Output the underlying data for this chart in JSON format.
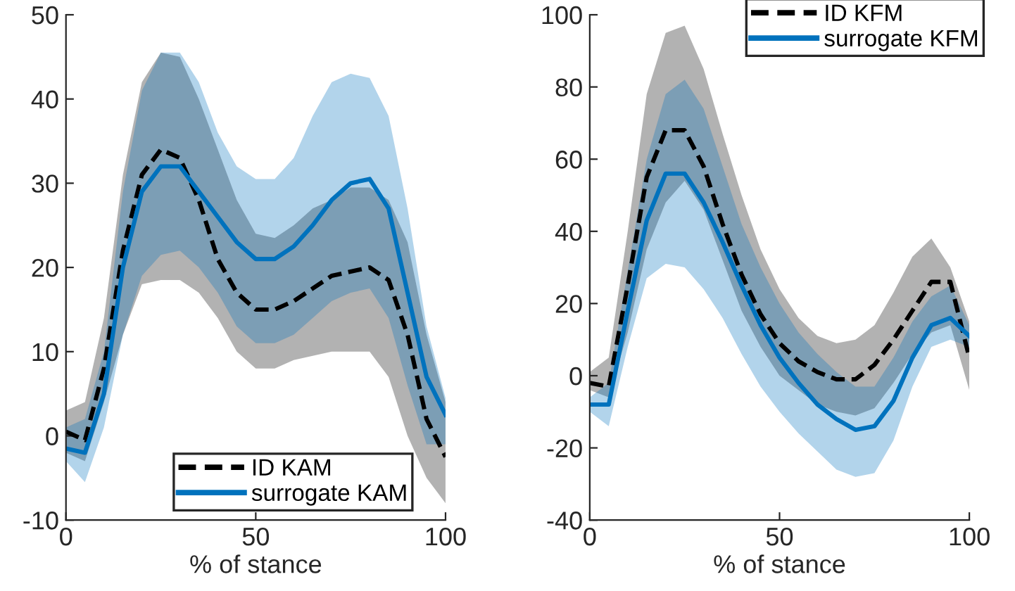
{
  "chart_data": [
    {
      "type": "line",
      "xlabel": "% of stance",
      "xlim": [
        0,
        100
      ],
      "xticks": [
        0,
        50,
        100
      ],
      "ylim": [
        -10,
        50
      ],
      "yticks": [
        -10,
        0,
        10,
        20,
        30,
        40,
        50
      ],
      "legend": "bottom right",
      "x": [
        0,
        5,
        10,
        15,
        20,
        25,
        30,
        35,
        40,
        45,
        50,
        55,
        60,
        65,
        70,
        75,
        80,
        85,
        90,
        95,
        100
      ],
      "series": [
        {
          "name": "ID KAM",
          "color": "#000000",
          "line_style": "dashed",
          "values": [
            0.5,
            -0.5,
            8,
            22,
            31,
            34,
            33,
            28,
            21,
            17,
            15,
            15,
            16,
            17.5,
            19,
            19.5,
            20,
            18.5,
            12,
            2,
            -2.5
          ],
          "lower": [
            -2,
            -3,
            4,
            12,
            18,
            18.5,
            18.5,
            17,
            14,
            10,
            8,
            8,
            9,
            9.5,
            10,
            10,
            10,
            7,
            0,
            -5,
            -8
          ],
          "upper": [
            3,
            4,
            14,
            31,
            42,
            45.5,
            45,
            40,
            34,
            28,
            24,
            23.5,
            25,
            27,
            28,
            29.5,
            29.5,
            28,
            23,
            12,
            4
          ]
        },
        {
          "name": "surrogate KAM",
          "color": "#0072bd",
          "line_style": "solid",
          "values": [
            -1.5,
            -2,
            5,
            20,
            29,
            32,
            32,
            29,
            26,
            23,
            21,
            21,
            22.5,
            25,
            28,
            30,
            30.5,
            27,
            17,
            7,
            2.5
          ],
          "lower": [
            -3,
            -5.5,
            1,
            12,
            19,
            21.5,
            22,
            20,
            17,
            13,
            11,
            11,
            12,
            14,
            16,
            17,
            17.5,
            14,
            6,
            -1,
            -1
          ],
          "upper": [
            1,
            2,
            10,
            29,
            41,
            45.5,
            45.5,
            42,
            36,
            32,
            30.5,
            30.5,
            33,
            38,
            42,
            43,
            42.5,
            38,
            27,
            13,
            4.5
          ]
        }
      ]
    },
    {
      "type": "line",
      "xlabel": "% of stance",
      "xlim": [
        0,
        100
      ],
      "xticks": [
        0,
        50,
        100
      ],
      "ylim": [
        -40,
        100
      ],
      "yticks": [
        -40,
        -20,
        0,
        20,
        40,
        60,
        80,
        100
      ],
      "legend": "top right",
      "x": [
        0,
        5,
        10,
        15,
        20,
        25,
        30,
        35,
        40,
        45,
        50,
        55,
        60,
        65,
        70,
        75,
        80,
        85,
        90,
        95,
        100
      ],
      "series": [
        {
          "name": "ID KFM",
          "color": "#000000",
          "line_style": "dashed",
          "values": [
            -2,
            -3,
            25,
            55,
            68,
            68,
            58,
            42,
            28,
            17,
            9,
            4,
            1,
            -1,
            -1,
            3,
            10,
            18,
            26,
            26,
            5
          ],
          "lower": [
            -4,
            -6,
            12,
            35,
            48,
            54,
            46,
            32,
            18,
            8,
            0,
            -4,
            -8,
            -10,
            -11,
            -9,
            -2,
            6,
            12,
            14,
            -4
          ],
          "upper": [
            1,
            5,
            40,
            78,
            95,
            97,
            85,
            67,
            50,
            35,
            24,
            16,
            11,
            9,
            10,
            14,
            23,
            33,
            38,
            30,
            15
          ]
        },
        {
          "name": "surrogate KFM",
          "color": "#0072bd",
          "line_style": "solid",
          "values": [
            -8,
            -8,
            18,
            43,
            56,
            56,
            48,
            37,
            25,
            14,
            5,
            -2,
            -8,
            -12,
            -15,
            -14,
            -7,
            5,
            14,
            16,
            11
          ],
          "lower": [
            -10,
            -14,
            8,
            27,
            31,
            30,
            24,
            16,
            6,
            -3,
            -10,
            -16,
            -21,
            -26,
            -28,
            -27,
            -18,
            -3,
            8,
            10,
            8
          ],
          "upper": [
            -6,
            -2,
            29,
            60,
            78,
            82,
            74,
            58,
            42,
            30,
            20,
            12,
            6,
            1,
            -3,
            -3,
            5,
            15,
            22,
            25,
            14
          ]
        }
      ]
    }
  ]
}
